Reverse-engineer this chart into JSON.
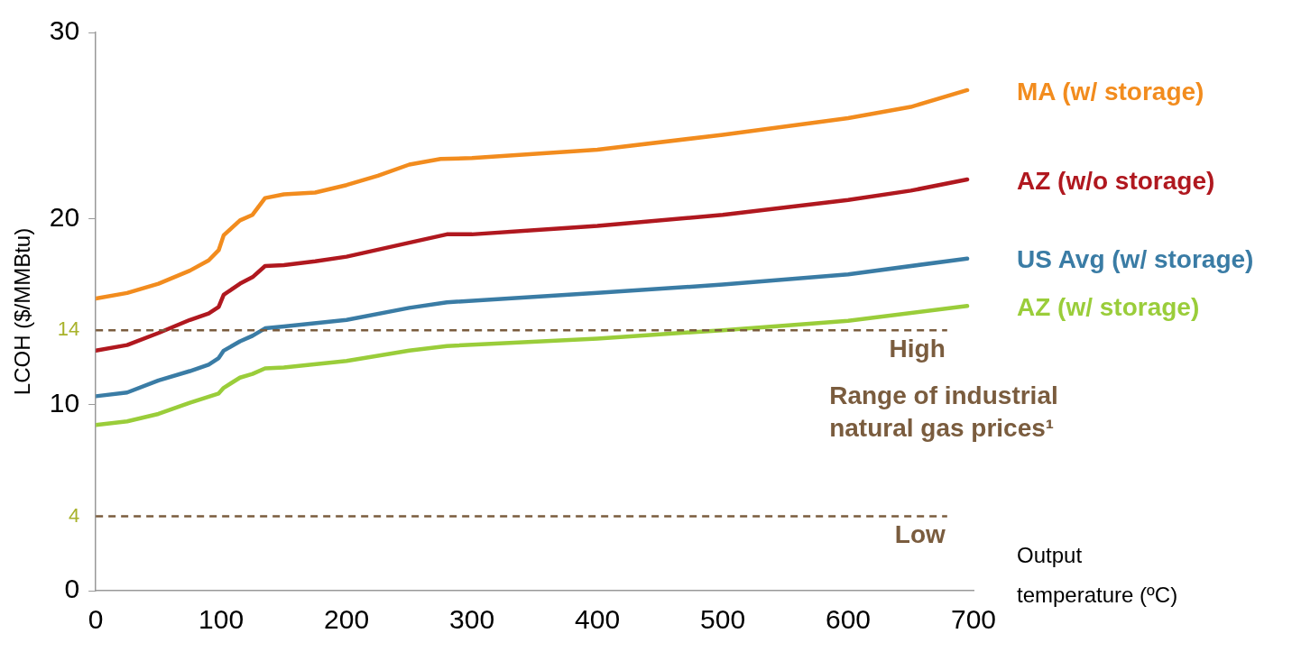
{
  "chart_data": {
    "type": "line",
    "xlabel": "Output temperature (ºC)",
    "ylabel": "LCOH ($/MMBtu)",
    "xlim": [
      0,
      700
    ],
    "xticks": [
      0,
      100,
      200,
      300,
      400,
      500,
      600,
      700
    ],
    "ylim": [
      0,
      30
    ],
    "yticks": [
      0,
      4,
      10,
      14,
      20,
      30
    ],
    "grid": false,
    "legend": false,
    "marker": "none",
    "line_style": "solid",
    "series": [
      {
        "name": "MA (w/ storage)",
        "color": "#f28c1e",
        "x": [
          0,
          25,
          50,
          75,
          90,
          98,
          102,
          115,
          125,
          135,
          150,
          175,
          200,
          225,
          250,
          275,
          300,
          400,
          500,
          600,
          650,
          695
        ],
        "values": [
          15.7,
          16,
          16.5,
          17.2,
          17.75,
          18.3,
          19.1,
          19.9,
          20.2,
          21.1,
          21.3,
          21.4,
          21.8,
          22.3,
          22.9,
          23.2,
          23.25,
          23.7,
          24.5,
          25.4,
          26,
          26.9
        ]
      },
      {
        "name": "AZ (w/o storage)",
        "color": "#b0181f",
        "x": [
          0,
          25,
          50,
          75,
          90,
          98,
          102,
          115,
          125,
          135,
          150,
          175,
          200,
          250,
          280,
          300,
          400,
          500,
          600,
          650,
          695
        ],
        "values": [
          12.9,
          13.2,
          13.85,
          14.55,
          14.9,
          15.25,
          15.9,
          16.5,
          16.85,
          17.45,
          17.5,
          17.7,
          17.95,
          18.7,
          19.15,
          19.15,
          19.6,
          20.2,
          21,
          21.5,
          22.1
        ]
      },
      {
        "name": "US Avg (w/ storage)",
        "color": "#3a7ca5",
        "x": [
          0,
          25,
          50,
          75,
          90,
          98,
          102,
          115,
          125,
          135,
          150,
          200,
          250,
          280,
          400,
          500,
          600,
          695
        ],
        "values": [
          10.45,
          10.65,
          11.3,
          11.8,
          12.15,
          12.5,
          12.9,
          13.4,
          13.7,
          14.1,
          14.2,
          14.55,
          15.2,
          15.5,
          16,
          16.45,
          17,
          17.85
        ]
      },
      {
        "name": "AZ (w/ storage)",
        "color": "#9acd3a",
        "x": [
          0,
          25,
          50,
          75,
          98,
          102,
          115,
          125,
          135,
          150,
          200,
          250,
          280,
          400,
          500,
          600,
          695
        ],
        "values": [
          8.9,
          9.1,
          9.5,
          10.1,
          10.6,
          10.9,
          11.45,
          11.65,
          11.95,
          12,
          12.35,
          12.9,
          13.15,
          13.55,
          14,
          14.5,
          15.3
        ]
      }
    ],
    "ref_lines": [
      {
        "axis": "y",
        "value": 14,
        "label": "High",
        "color": "#7a5c3e",
        "line_style": "dashed"
      },
      {
        "axis": "y",
        "value": 4,
        "label": "Low",
        "color": "#7a5c3e",
        "line_style": "dashed"
      }
    ],
    "annotations": [
      "Range of industrial natural gas prices¹"
    ]
  }
}
